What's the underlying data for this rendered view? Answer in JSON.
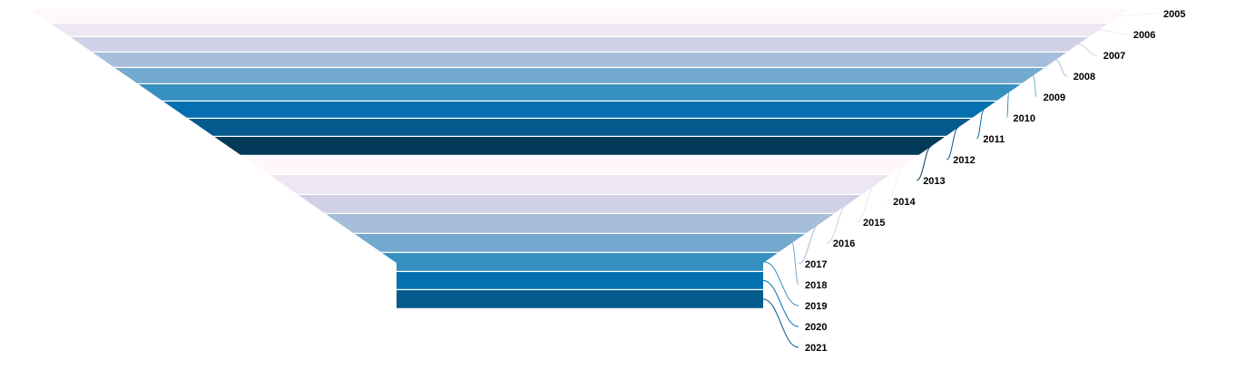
{
  "chart_data": {
    "type": "funnel",
    "title": "",
    "categories": [
      "2005",
      "2006",
      "2007",
      "2008",
      "2009",
      "2010",
      "2011",
      "2012",
      "2013",
      "2014",
      "2015",
      "2016",
      "2017",
      "2018",
      "2019",
      "2020",
      "2021"
    ],
    "palette": [
      "#fff7fb",
      "#ece7f2",
      "#d0d1e6",
      "#a6bddb",
      "#74a9cf",
      "#3690c0",
      "#0570b0",
      "#045a8d",
      "#023858"
    ],
    "legend": "none",
    "labels_position": "right-of-funnel"
  }
}
